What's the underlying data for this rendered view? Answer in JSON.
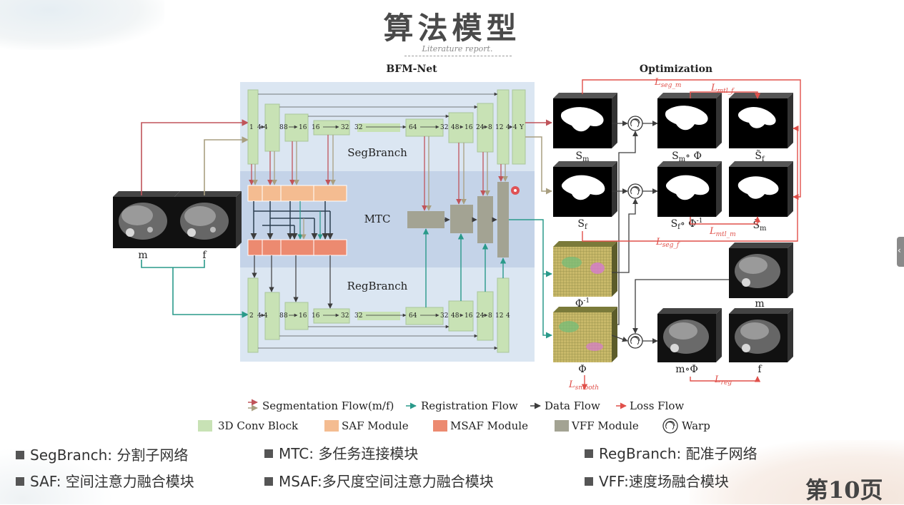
{
  "header": {
    "title": "算法模型",
    "subtitle": "Literature report."
  },
  "diagram": {
    "bfm_title": "BFM-Net",
    "opt_title": "Optimization",
    "segbranch": "SegBranch",
    "regbranch": "RegBranch",
    "mtc": "MTC",
    "seg_channels": [
      "1",
      "4",
      "4",
      "8",
      "8",
      "16",
      "16",
      "32",
      "32",
      "64",
      "32",
      "48",
      "16",
      "24",
      "8",
      "12",
      "4",
      "4",
      "Y"
    ],
    "reg_channels": [
      "2",
      "4",
      "4",
      "8",
      "8",
      "16",
      "16",
      "32",
      "32",
      "64",
      "32",
      "48",
      "16",
      "24",
      "8",
      "12",
      "4"
    ],
    "input_m": "m",
    "input_f": "f",
    "sm": "S",
    "sm_sub": "m",
    "sm_warp": "S",
    "sm_warp_sub": "m",
    "sm_warp_op": "∘ Φ",
    "sf_tilde": "S̃",
    "sf_tilde_sub": "f",
    "sf": "S",
    "sf_sub": "f",
    "sf_warp": "S",
    "sf_warp_sub": "f",
    "sf_warp_op": "∘ Φ",
    "sf_warp_sup": "-1",
    "sm_tilde": "S̃",
    "sm_tilde_sub": "m",
    "phi_inv": "Φ",
    "phi_inv_sup": "-1",
    "phi": "Φ",
    "m_right": "m",
    "m_warp": "m∘Φ",
    "f_right": "f",
    "loss_seg_m": "L",
    "loss_seg_m_sub": "seg_m",
    "loss_mtl_f": "L",
    "loss_mtl_f_sub": "mtl_f",
    "loss_mtl_m": "L",
    "loss_mtl_m_sub": "mtl_m",
    "loss_seg_f": "L",
    "loss_seg_f_sub": "seg_f",
    "loss_smooth": "L",
    "loss_smooth_sub": "smooth",
    "loss_reg": "L",
    "loss_reg_sub": "reg",
    "legend": {
      "seg_flow": "Segmentation Flow(m/f)",
      "reg_flow": "Registration Flow",
      "data_flow": "Data Flow",
      "loss_flow": "Loss Flow",
      "conv_block": "3D Conv Block",
      "saf": "SAF Module",
      "msaf": "MSAF Module",
      "vff": "VFF Module",
      "warp": "Warp"
    },
    "colors": {
      "conv": "#c8e2b5",
      "saf": "#f4bc91",
      "msaf": "#ec8a70",
      "vff": "#a3a393",
      "seg_red": "#c0545a",
      "seg_tan": "#a99f80",
      "reg": "#2a9a8a",
      "data": "#3d3d3d",
      "loss": "#e0504a",
      "panel": "#dbe6f2",
      "mtc_band": "#c4d3e8"
    }
  },
  "bullets": [
    {
      "label": "SegBranch: 分割子网络"
    },
    {
      "label": "MTC: 多任务连接模块"
    },
    {
      "label": "RegBranch: 配准子网络"
    },
    {
      "label": "SAF: 空间注意力融合模块"
    },
    {
      "label": "MSAF:多尺度空间注意力融合模块"
    },
    {
      "label": "VFF:速度场融合模块"
    }
  ],
  "page_number": "第10页"
}
